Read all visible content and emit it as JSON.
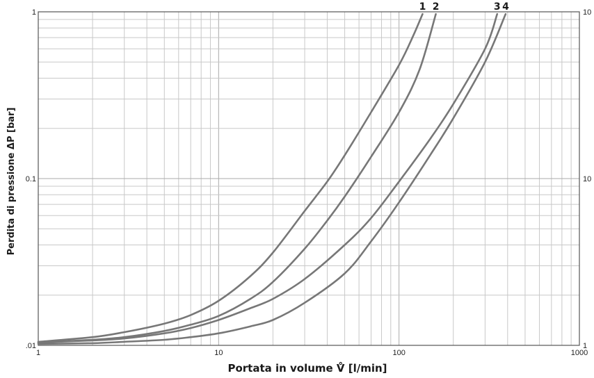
{
  "chart_data": {
    "type": "line",
    "xlabel": "Portata in volume V̊ [l/min]",
    "ylabel": "Perdita di pressione ΔP  [bar]",
    "x_scale": "log",
    "y_scale": "log",
    "xlim": [
      1,
      1000
    ],
    "ylim": [
      0.01,
      1
    ],
    "grid": true,
    "x_ticks": [
      "1",
      "10",
      "100",
      "1000"
    ],
    "y_ticks_left": [
      ".01",
      "0.1",
      "1"
    ],
    "y_ticks_right": [
      "1",
      "10",
      "10"
    ],
    "series": [
      {
        "name": "1",
        "x": [
          1,
          2,
          3,
          5,
          7,
          10,
          15,
          20,
          30,
          40,
          50,
          70,
          100,
          120,
          135
        ],
        "y": [
          0.0105,
          0.0112,
          0.012,
          0.0135,
          0.0152,
          0.0185,
          0.026,
          0.036,
          0.064,
          0.096,
          0.138,
          0.25,
          0.48,
          0.72,
          0.97
        ]
      },
      {
        "name": "2",
        "x": [
          1,
          2,
          3,
          5,
          7,
          10,
          15,
          20,
          30,
          40,
          50,
          70,
          100,
          130,
          160
        ],
        "y": [
          0.0104,
          0.0108,
          0.0112,
          0.0122,
          0.0133,
          0.015,
          0.019,
          0.024,
          0.038,
          0.056,
          0.078,
          0.135,
          0.25,
          0.45,
          0.97
        ]
      },
      {
        "name": "3",
        "x": [
          1,
          2,
          3,
          5,
          7,
          10,
          15,
          20,
          30,
          50,
          70,
          100,
          150,
          200,
          300,
          350
        ],
        "y": [
          0.0104,
          0.0107,
          0.011,
          0.0118,
          0.0127,
          0.0142,
          0.0167,
          0.019,
          0.025,
          0.04,
          0.058,
          0.096,
          0.175,
          0.28,
          0.6,
          0.97
        ]
      },
      {
        "name": "4",
        "x": [
          1,
          2,
          3,
          5,
          7,
          10,
          15,
          20,
          30,
          50,
          70,
          100,
          150,
          200,
          300,
          390
        ],
        "y": [
          0.0102,
          0.0103,
          0.0105,
          0.0108,
          0.0112,
          0.0118,
          0.013,
          0.0142,
          0.018,
          0.027,
          0.042,
          0.072,
          0.14,
          0.23,
          0.5,
          0.97
        ]
      }
    ],
    "curve_labels": [
      "1",
      "2",
      "3",
      "4"
    ],
    "colors": {
      "curve": "#777777",
      "grid": "#c8c8c8",
      "frame": "#555555"
    }
  }
}
